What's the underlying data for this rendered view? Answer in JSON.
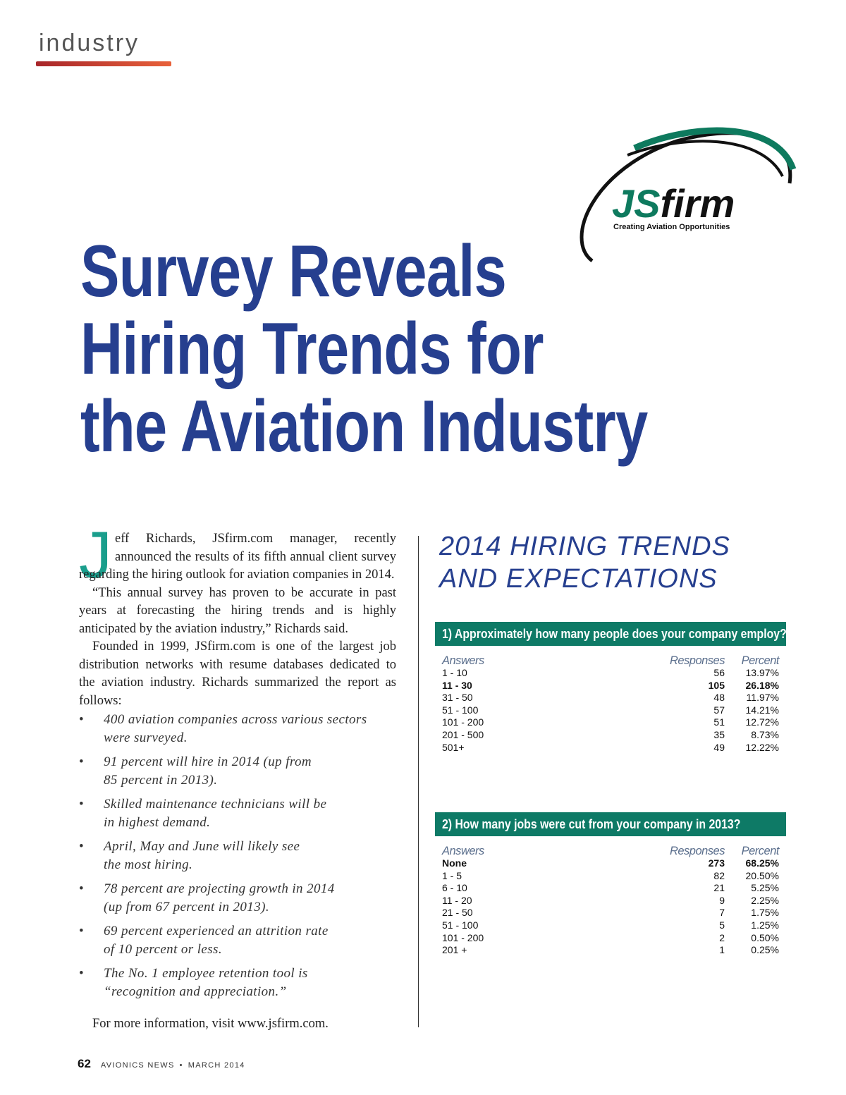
{
  "section": "industry",
  "logo": {
    "wordmark_prefix": "JS",
    "wordmark_suffix": "firm",
    "tagline": "Creating Aviation Opportunities"
  },
  "title": [
    "Survey Reveals",
    "Hiring Trends for",
    "the Aviation Industry"
  ],
  "article": {
    "drop_cap": "J",
    "paragraphs": [
      "eff Richards, JSfirm.com manager, recently announced the results of its fifth annual client survey regarding the hiring outlook for aviation companies in 2014.",
      "“This annual survey has proven to be accurate in past years at forecasting the hiring trends and is highly anticipated by the aviation industry,” Richards said.",
      "Founded in 1999, JSfirm.com is one of the largest job distribution networks with resume databases dedicated to the aviation industry. Richards summarized the report as follows:"
    ],
    "bullets": [
      [
        "400 aviation companies across various sectors",
        "were surveyed."
      ],
      [
        "91 percent will hire in 2014 (up from",
        "85 percent in 2013)."
      ],
      [
        "Skilled maintenance technicians will be",
        "in highest demand."
      ],
      [
        "April, May and June will likely see",
        "the most hiring."
      ],
      [
        "78 percent are projecting growth in 2014",
        "(up from 67 percent in 2013)."
      ],
      [
        "69 percent experienced an attrition rate",
        "of 10 percent or less."
      ],
      [
        "The No. 1 employee retention tool is",
        "“recognition and appreciation.”"
      ]
    ],
    "closing": "For more information, visit www.jsfirm.com."
  },
  "sidebar": {
    "title": [
      "2014 HIRING TRENDS",
      "AND EXPECTATIONS"
    ],
    "tables": [
      {
        "question": "1) Approximately how many people does your company employ?",
        "headers": [
          "Answers",
          "Responses",
          "Percent"
        ],
        "bold_row": 1,
        "rows": [
          [
            "1 - 10",
            56,
            "13.97%"
          ],
          [
            "11 - 30",
            105,
            "26.18%"
          ],
          [
            "31 - 50",
            48,
            "11.97%"
          ],
          [
            "51 - 100",
            57,
            "14.21%"
          ],
          [
            "101 - 200",
            51,
            "12.72%"
          ],
          [
            "201 - 500",
            35,
            "8.73%"
          ],
          [
            "501+",
            49,
            "12.22%"
          ]
        ]
      },
      {
        "question": "2) How many jobs were cut from your company in 2013?",
        "headers": [
          "Answers",
          "Responses",
          "Percent"
        ],
        "bold_row": 0,
        "rows": [
          [
            "None",
            273,
            "68.25%"
          ],
          [
            "1 - 5",
            82,
            "20.50%"
          ],
          [
            "6 - 10",
            21,
            "5.25%"
          ],
          [
            "11 - 20",
            9,
            "2.25%"
          ],
          [
            "21 - 50",
            7,
            "1.75%"
          ],
          [
            "51 - 100",
            5,
            "1.25%"
          ],
          [
            "101 - 200",
            2,
            "0.50%"
          ],
          [
            "201 +",
            1,
            "0.25%"
          ]
        ]
      }
    ]
  },
  "footer": {
    "page": "62",
    "publication": "AVIONICS NEWS",
    "date": "MARCH 2014"
  }
}
